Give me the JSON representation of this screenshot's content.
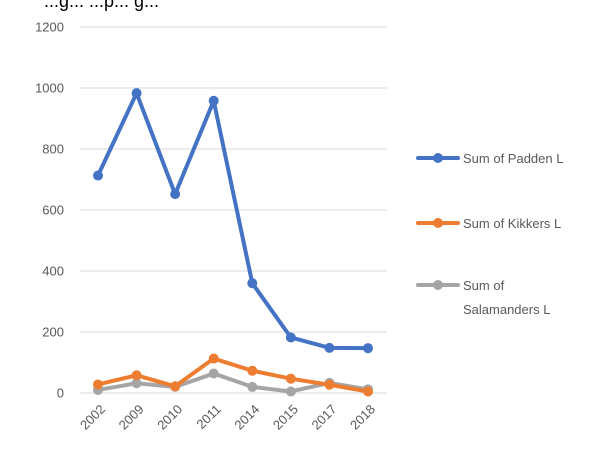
{
  "chart_data": {
    "type": "line",
    "title": "...g... ...p... g...",
    "categories": [
      "2002",
      "2009",
      "2010",
      "2011",
      "2014",
      "2015",
      "2017",
      "2018"
    ],
    "ylim": [
      0,
      1200
    ],
    "yticks": [
      "0",
      "200",
      "400",
      "600",
      "800",
      "1000",
      "1200"
    ],
    "grid": true,
    "legend_position": "right",
    "series": [
      {
        "name": "Sum of Padden L",
        "legend_lines": [
          "Sum of Padden L"
        ],
        "color": "#4472C4",
        "values": [
          713,
          983,
          652,
          958,
          360,
          182,
          148,
          147
        ]
      },
      {
        "name": "Sum of Kikkers L",
        "legend_lines": [
          "Sum of Kikkers L"
        ],
        "color": "#ED7D31",
        "values": [
          28,
          58,
          22,
          113,
          73,
          47,
          27,
          5
        ]
      },
      {
        "name": "Sum of Salamanders L",
        "legend_lines": [
          "Sum of",
          "Salamanders L"
        ],
        "color": "#A5A5A5",
        "values": [
          10,
          32,
          20,
          64,
          20,
          5,
          33,
          12
        ]
      }
    ]
  }
}
